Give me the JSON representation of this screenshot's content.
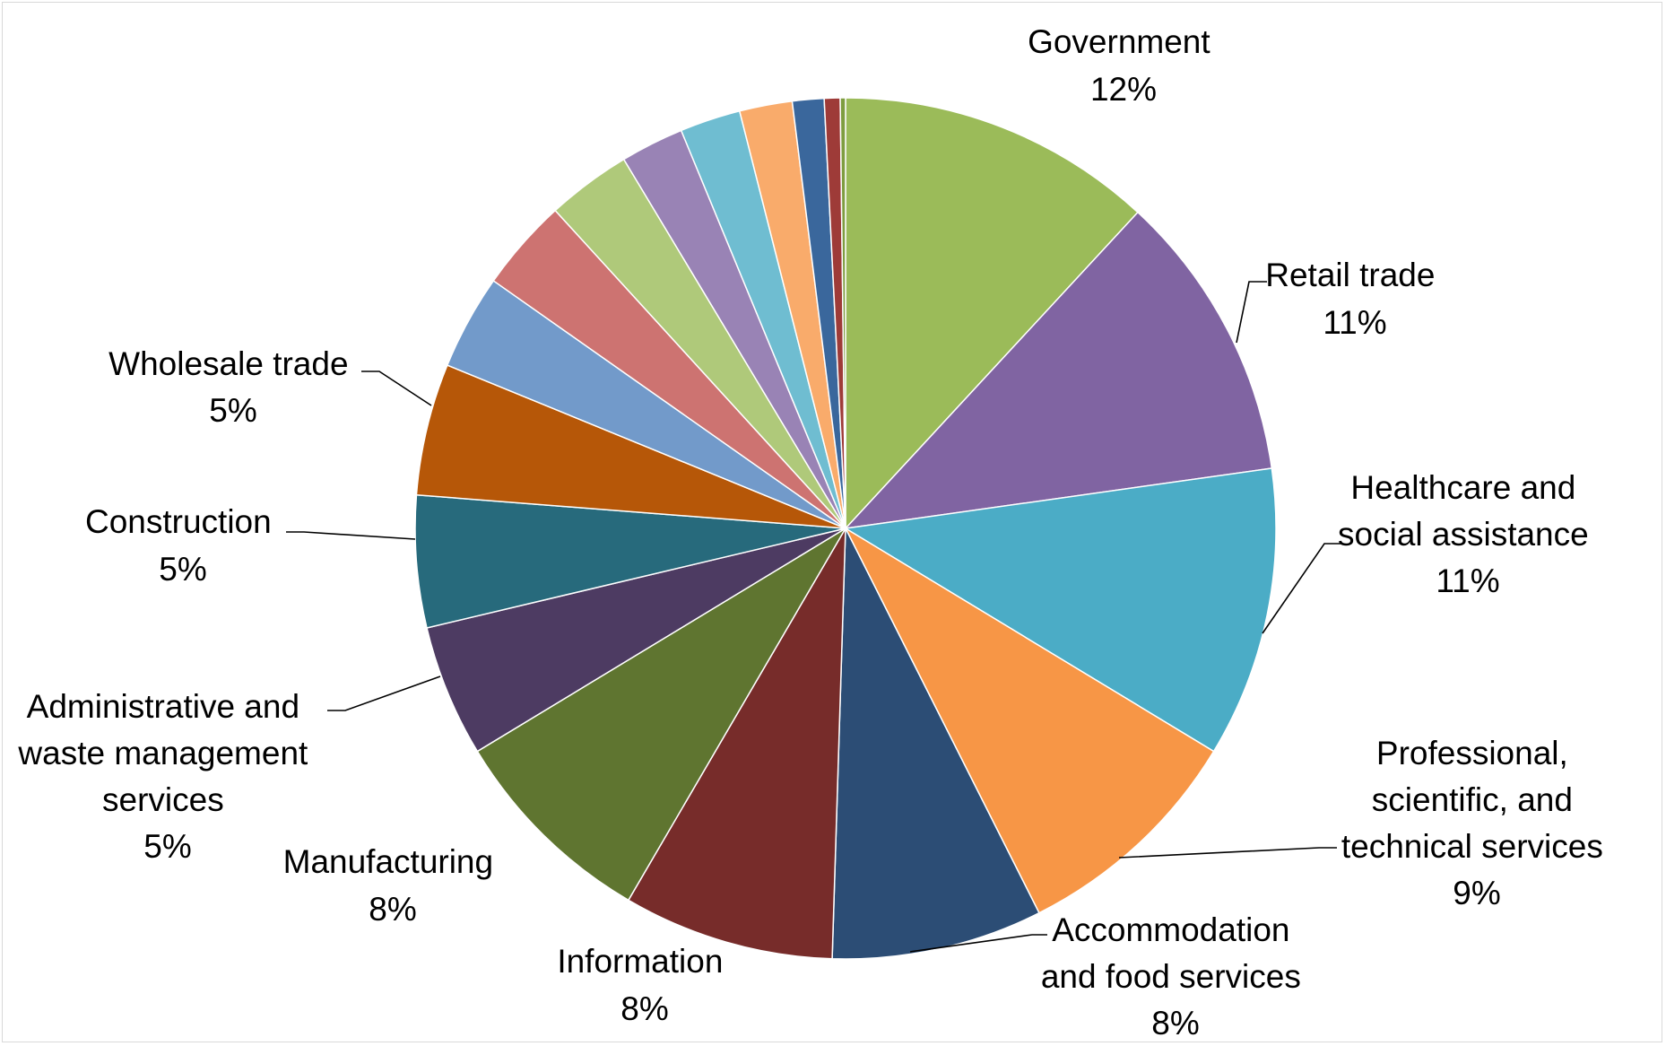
{
  "chart_data": {
    "type": "pie",
    "title": "",
    "start_angle_deg": 0,
    "direction": "clockwise",
    "legend": "none",
    "slices": [
      {
        "name": "Government",
        "value": 12,
        "pct_label": "12%",
        "color": "#9BBB59",
        "labeled": true
      },
      {
        "name": "Retail trade",
        "value": 11,
        "pct_label": "11%",
        "color": "#8064A2",
        "labeled": true
      },
      {
        "name": "Healthcare and social assistance",
        "value": 11,
        "pct_label": "11%",
        "color": "#4BACC6",
        "labeled": true
      },
      {
        "name": "Professional, scientific, and technical services",
        "value": 9,
        "pct_label": "9%",
        "color": "#F79646",
        "labeled": true
      },
      {
        "name": "Accommodation and food services",
        "value": 8,
        "pct_label": "8%",
        "color": "#2C4D75",
        "labeled": true
      },
      {
        "name": "Information",
        "value": 8,
        "pct_label": "8%",
        "color": "#772C2A",
        "labeled": true
      },
      {
        "name": "Manufacturing",
        "value": 8,
        "pct_label": "8%",
        "color": "#5F7530",
        "labeled": true
      },
      {
        "name": "Administrative and waste management services",
        "value": 5,
        "pct_label": "5%",
        "color": "#4D3B62",
        "labeled": true
      },
      {
        "name": "Construction",
        "value": 5,
        "pct_label": "5%",
        "color": "#276A7C",
        "labeled": true
      },
      {
        "name": "Wholesale trade",
        "value": 5,
        "pct_label": "5%",
        "color": "#B65708",
        "labeled": true
      },
      {
        "name": "",
        "value": 3.6,
        "pct_label": "",
        "color": "#729ACA",
        "labeled": false
      },
      {
        "name": "",
        "value": 3.5,
        "pct_label": "",
        "color": "#CD7371",
        "labeled": false
      },
      {
        "name": "",
        "value": 3.2,
        "pct_label": "",
        "color": "#AFC97A",
        "labeled": false
      },
      {
        "name": "",
        "value": 2.4,
        "pct_label": "",
        "color": "#9983B5",
        "labeled": false
      },
      {
        "name": "",
        "value": 2.3,
        "pct_label": "",
        "color": "#6FBDD1",
        "labeled": false
      },
      {
        "name": "",
        "value": 2.0,
        "pct_label": "",
        "color": "#F9AB6B",
        "labeled": false
      },
      {
        "name": "",
        "value": 1.2,
        "pct_label": "",
        "color": "#3A679C",
        "labeled": false
      },
      {
        "name": "",
        "value": 0.6,
        "pct_label": "",
        "color": "#9E3B38",
        "labeled": false
      },
      {
        "name": "",
        "value": 0.2,
        "pct_label": "",
        "color": "#7E9D40",
        "labeled": false
      }
    ]
  },
  "labels": {
    "government": {
      "lines": [
        "Government"
      ],
      "pct": "12%"
    },
    "retail": {
      "lines": [
        "Retail trade"
      ],
      "pct": "11%"
    },
    "healthcare": {
      "lines": [
        "Healthcare and",
        "social assistance"
      ],
      "pct": "11%"
    },
    "professional": {
      "lines": [
        "Professional,",
        "scientific, and",
        "technical services"
      ],
      "pct": "9%"
    },
    "accommodation": {
      "lines": [
        "Accommodation",
        "and food services"
      ],
      "pct": "8%"
    },
    "information": {
      "lines": [
        "Information"
      ],
      "pct": "8%"
    },
    "manufacturing": {
      "lines": [
        "Manufacturing"
      ],
      "pct": "8%"
    },
    "administrative": {
      "lines": [
        "Administrative and",
        "waste management",
        "services"
      ],
      "pct": "5%"
    },
    "construction": {
      "lines": [
        "Construction"
      ],
      "pct": "5%"
    },
    "wholesale": {
      "lines": [
        "Wholesale trade"
      ],
      "pct": "5%"
    }
  }
}
